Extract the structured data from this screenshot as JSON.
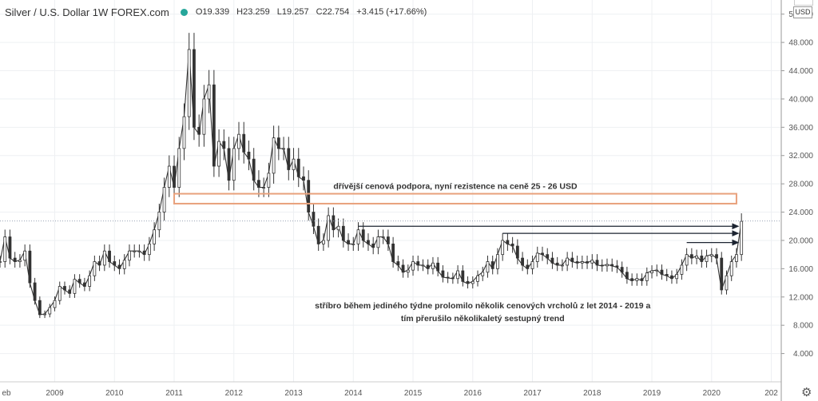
{
  "header": {
    "title": "Silver / U.S. Dollar  1W  FOREX.com",
    "open": "O19.339",
    "high": "H23.259",
    "low": "L19.257",
    "close": "C22.754",
    "change": "+3.415 (+17.66%)"
  },
  "currency_label": "USD",
  "icons": {
    "settings": "gear-icon",
    "status": "status-dot-icon"
  },
  "colors": {
    "candle": "#333333",
    "support_band": "#e8a17c",
    "price_line": "#9aa3b5",
    "arrows": "#1c2431",
    "status_dot": "#26a69a"
  },
  "chart_data": {
    "type": "line",
    "title": "Silver / U.S. Dollar  1W  FOREX.com",
    "x_ticks": [
      "eb",
      "2009",
      "2010",
      "2011",
      "2012",
      "2013",
      "2014",
      "2015",
      "2016",
      "2017",
      "2018",
      "2019",
      "2020",
      "202"
    ],
    "y_ticks": [
      "4.000",
      "8.000",
      "12.000",
      "16.000",
      "20.000",
      "24.000",
      "28.000",
      "32.000",
      "36.000",
      "40.000",
      "44.000",
      "48.000",
      "52.000"
    ],
    "ylim": [
      0,
      54
    ],
    "xlim": [
      "2008-02",
      "2021-03"
    ],
    "grid": true,
    "series": [
      {
        "points": [
          [
            "2008-02",
            17.0
          ],
          [
            "2008-03",
            20.5
          ],
          [
            "2008-04",
            17.5
          ],
          [
            "2008-05",
            17.0
          ],
          [
            "2008-06",
            17.2
          ],
          [
            "2008-07",
            18.5
          ],
          [
            "2008-08",
            14.0
          ],
          [
            "2008-09",
            11.5
          ],
          [
            "2008-10",
            9.5
          ],
          [
            "2008-11",
            9.6
          ],
          [
            "2008-12",
            10.5
          ],
          [
            "2009-01",
            11.5
          ],
          [
            "2009-02",
            13.5
          ],
          [
            "2009-03",
            13.0
          ],
          [
            "2009-04",
            12.5
          ],
          [
            "2009-05",
            14.5
          ],
          [
            "2009-06",
            14.0
          ],
          [
            "2009-07",
            13.5
          ],
          [
            "2009-08",
            15.0
          ],
          [
            "2009-09",
            17.0
          ],
          [
            "2009-10",
            16.5
          ],
          [
            "2009-11",
            18.5
          ],
          [
            "2009-12",
            17.0
          ],
          [
            "2010-01",
            16.5
          ],
          [
            "2010-02",
            16.0
          ],
          [
            "2010-03",
            17.2
          ],
          [
            "2010-04",
            18.5
          ],
          [
            "2010-05",
            18.5
          ],
          [
            "2010-06",
            18.5
          ],
          [
            "2010-07",
            18.0
          ],
          [
            "2010-08",
            19.5
          ],
          [
            "2010-09",
            21.5
          ],
          [
            "2010-10",
            24.0
          ],
          [
            "2010-11",
            27.5
          ],
          [
            "2010-12",
            30.5
          ],
          [
            "2011-01",
            27.5
          ],
          [
            "2011-02",
            33.0
          ],
          [
            "2011-03",
            37.5
          ],
          [
            "2011-04",
            47.0
          ],
          [
            "2011-05",
            36.0
          ],
          [
            "2011-06",
            35.0
          ],
          [
            "2011-07",
            40.0
          ],
          [
            "2011-08",
            42.0
          ],
          [
            "2011-09",
            30.5
          ],
          [
            "2011-10",
            34.0
          ],
          [
            "2011-11",
            33.0
          ],
          [
            "2011-12",
            28.5
          ],
          [
            "2012-01",
            33.0
          ],
          [
            "2012-02",
            35.0
          ],
          [
            "2012-03",
            32.5
          ],
          [
            "2012-04",
            31.5
          ],
          [
            "2012-05",
            28.5
          ],
          [
            "2012-06",
            27.5
          ],
          [
            "2012-07",
            27.5
          ],
          [
            "2012-08",
            29.5
          ],
          [
            "2012-09",
            34.5
          ],
          [
            "2012-10",
            33.0
          ],
          [
            "2012-11",
            33.0
          ],
          [
            "2012-12",
            30.0
          ],
          [
            "2013-01",
            31.5
          ],
          [
            "2013-02",
            29.0
          ],
          [
            "2013-03",
            28.5
          ],
          [
            "2013-04",
            24.0
          ],
          [
            "2013-05",
            22.0
          ],
          [
            "2013-06",
            19.5
          ],
          [
            "2013-07",
            20.0
          ],
          [
            "2013-08",
            23.5
          ],
          [
            "2013-09",
            21.5
          ],
          [
            "2013-10",
            22.0
          ],
          [
            "2013-11",
            20.0
          ],
          [
            "2013-12",
            19.5
          ],
          [
            "2014-01",
            19.5
          ],
          [
            "2014-02",
            21.5
          ],
          [
            "2014-03",
            20.0
          ],
          [
            "2014-04",
            19.5
          ],
          [
            "2014-05",
            19.0
          ],
          [
            "2014-06",
            20.5
          ],
          [
            "2014-07",
            20.5
          ],
          [
            "2014-08",
            19.5
          ],
          [
            "2014-09",
            17.0
          ],
          [
            "2014-10",
            16.5
          ],
          [
            "2014-11",
            15.5
          ],
          [
            "2014-12",
            15.8
          ],
          [
            "2015-01",
            17.0
          ],
          [
            "2015-02",
            16.5
          ],
          [
            "2015-03",
            16.5
          ],
          [
            "2015-04",
            16.0
          ],
          [
            "2015-05",
            16.8
          ],
          [
            "2015-06",
            15.7
          ],
          [
            "2015-07",
            14.8
          ],
          [
            "2015-08",
            14.7
          ],
          [
            "2015-09",
            14.6
          ],
          [
            "2015-10",
            15.7
          ],
          [
            "2015-11",
            14.2
          ],
          [
            "2015-12",
            13.9
          ],
          [
            "2016-01",
            14.2
          ],
          [
            "2016-02",
            15.0
          ],
          [
            "2016-03",
            15.5
          ],
          [
            "2016-04",
            17.0
          ],
          [
            "2016-05",
            16.0
          ],
          [
            "2016-06",
            18.0
          ],
          [
            "2016-07",
            20.0
          ],
          [
            "2016-08",
            19.5
          ],
          [
            "2016-09",
            19.2
          ],
          [
            "2016-10",
            17.5
          ],
          [
            "2016-11",
            16.5
          ],
          [
            "2016-12",
            16.0
          ],
          [
            "2017-01",
            17.0
          ],
          [
            "2017-02",
            18.2
          ],
          [
            "2017-03",
            18.0
          ],
          [
            "2017-04",
            17.5
          ],
          [
            "2017-05",
            16.8
          ],
          [
            "2017-06",
            16.5
          ],
          [
            "2017-07",
            16.5
          ],
          [
            "2017-08",
            17.5
          ],
          [
            "2017-09",
            17.0
          ],
          [
            "2017-10",
            16.8
          ],
          [
            "2017-11",
            17.0
          ],
          [
            "2017-12",
            16.8
          ],
          [
            "2018-01",
            17.2
          ],
          [
            "2018-02",
            16.5
          ],
          [
            "2018-03",
            16.4
          ],
          [
            "2018-04",
            16.6
          ],
          [
            "2018-05",
            16.4
          ],
          [
            "2018-06",
            16.2
          ],
          [
            "2018-07",
            15.5
          ],
          [
            "2018-08",
            14.6
          ],
          [
            "2018-09",
            14.3
          ],
          [
            "2018-10",
            14.6
          ],
          [
            "2018-11",
            14.3
          ],
          [
            "2018-12",
            15.4
          ],
          [
            "2019-01",
            15.7
          ],
          [
            "2019-02",
            15.8
          ],
          [
            "2019-03",
            15.2
          ],
          [
            "2019-04",
            15.0
          ],
          [
            "2019-05",
            14.6
          ],
          [
            "2019-06",
            15.2
          ],
          [
            "2019-07",
            16.5
          ],
          [
            "2019-08",
            18.0
          ],
          [
            "2019-09",
            17.5
          ],
          [
            "2019-10",
            17.8
          ],
          [
            "2019-11",
            17.0
          ],
          [
            "2019-12",
            17.8
          ],
          [
            "2020-01",
            18.0
          ],
          [
            "2020-02",
            17.5
          ],
          [
            "2020-03",
            13.0
          ],
          [
            "2020-04",
            15.0
          ],
          [
            "2020-05",
            17.0
          ],
          [
            "2020-06",
            18.0
          ],
          [
            "2020-07",
            22.7
          ]
        ]
      }
    ],
    "annotations": [
      {
        "text": "dřívější cenová podpora, nyní rezistence na ceně 25 - 26 USD",
        "kind": "band",
        "y_range": [
          25.2,
          26.6
        ],
        "x_range": [
          "2011-01",
          "2020-06"
        ]
      },
      {
        "text": "stříbro během jediného týdne prolomilo několik cenových vrcholů z let 2014 - 2019 a",
        "kind": "text"
      },
      {
        "text": "tím přerušilo několikaletý sestupný trend",
        "kind": "text"
      }
    ],
    "arrows": [
      {
        "from": [
          "2014-02",
          22.0
        ],
        "to": [
          "2020-07",
          22.0
        ]
      },
      {
        "from": [
          "2016-07",
          21.0
        ],
        "to": [
          "2020-07",
          21.0
        ]
      },
      {
        "from": [
          "2019-08",
          19.7
        ],
        "to": [
          "2020-07",
          19.7
        ]
      }
    ],
    "price_line": 22.754
  }
}
